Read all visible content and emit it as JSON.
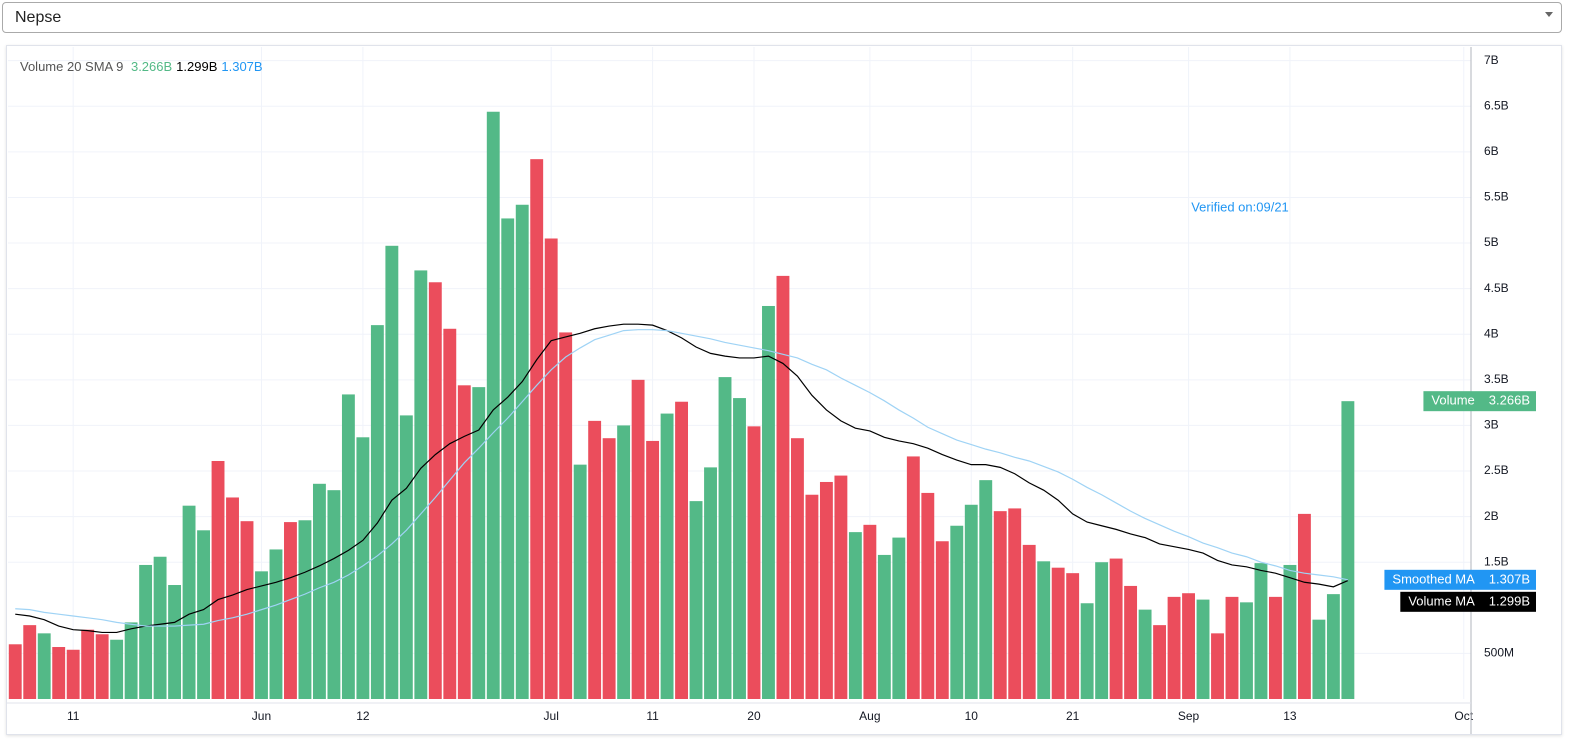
{
  "dropdown": {
    "value": "Nepse"
  },
  "chart_data": {
    "type": "bar",
    "legend_title": "Volume 20 SMA 9",
    "annotation": "Verified on:09/21",
    "annotation_color": "#2196f3",
    "grid": true,
    "ylim": [
      0,
      7.15
    ],
    "yticks": [
      {
        "value": 0.5,
        "label": "500M"
      },
      {
        "value": 1.5,
        "label": "1.5B"
      },
      {
        "value": 2,
        "label": "2B"
      },
      {
        "value": 2.5,
        "label": "2.5B"
      },
      {
        "value": 3,
        "label": "3B"
      },
      {
        "value": 3.5,
        "label": "3.5B"
      },
      {
        "value": 4,
        "label": "4B"
      },
      {
        "value": 4.5,
        "label": "4.5B"
      },
      {
        "value": 5,
        "label": "5B"
      },
      {
        "value": 5.5,
        "label": "5.5B"
      },
      {
        "value": 6,
        "label": "6B"
      },
      {
        "value": 6.5,
        "label": "6.5B"
      },
      {
        "value": 7,
        "label": "7B"
      }
    ],
    "categories": [
      null,
      null,
      null,
      null,
      "11",
      null,
      null,
      null,
      null,
      null,
      null,
      null,
      null,
      null,
      null,
      null,
      null,
      "Jun",
      null,
      null,
      null,
      null,
      null,
      null,
      "12",
      null,
      null,
      null,
      null,
      null,
      null,
      null,
      null,
      null,
      null,
      null,
      null,
      "Jul",
      null,
      null,
      null,
      null,
      null,
      null,
      "11",
      null,
      null,
      null,
      null,
      null,
      null,
      "20",
      null,
      null,
      null,
      null,
      null,
      null,
      null,
      "Aug",
      null,
      null,
      null,
      null,
      null,
      null,
      "10",
      null,
      null,
      null,
      null,
      null,
      null,
      "21",
      null,
      null,
      null,
      null,
      null,
      null,
      null,
      "Sep",
      null,
      null,
      null,
      null,
      null,
      null,
      "13",
      null,
      null,
      null,
      null,
      null,
      null,
      null,
      null,
      null,
      null,
      null,
      "Oct"
    ],
    "series": [
      {
        "name": "Volume",
        "type": "bar",
        "last_label": "3.266B",
        "label_color": "#53b987",
        "tag_color": "#53b987",
        "values": [
          0.6,
          0.81,
          0.72,
          0.57,
          0.54,
          0.76,
          0.71,
          0.65,
          0.84,
          1.47,
          1.56,
          1.25,
          2.12,
          1.85,
          2.61,
          2.21,
          1.95,
          1.4,
          1.64,
          1.94,
          1.96,
          2.36,
          2.29,
          3.34,
          2.87,
          4.1,
          4.97,
          3.11,
          4.7,
          4.57,
          4.06,
          3.44,
          3.42,
          6.44,
          5.27,
          5.42,
          5.92,
          5.05,
          4.02,
          2.57,
          3.05,
          2.86,
          3.0,
          3.5,
          2.83,
          3.13,
          3.26,
          2.17,
          2.54,
          3.53,
          3.3,
          2.99,
          4.31,
          4.64,
          2.86,
          2.24,
          2.38,
          2.45,
          1.83,
          1.91,
          1.58,
          1.77,
          2.66,
          2.26,
          1.73,
          1.9,
          2.13,
          2.4,
          2.06,
          2.09,
          1.69,
          1.51,
          1.44,
          1.38,
          1.05,
          1.5,
          1.54,
          1.24,
          0.98,
          0.81,
          1.12,
          1.16,
          1.09,
          0.72,
          1.12,
          1.06,
          1.49,
          1.12,
          1.47,
          2.03,
          0.87,
          1.15,
          3.266,
          null,
          null,
          null,
          null,
          null,
          null,
          null,
          null
        ],
        "colors": [
          "#eb4d5c",
          "#eb4d5c",
          "#53b987",
          "#eb4d5c",
          "#eb4d5c",
          "#eb4d5c",
          "#eb4d5c",
          "#53b987",
          "#53b987",
          "#53b987",
          "#53b987",
          "#53b987",
          "#53b987",
          "#53b987",
          "#eb4d5c",
          "#eb4d5c",
          "#eb4d5c",
          "#53b987",
          "#53b987",
          "#eb4d5c",
          "#53b987",
          "#53b987",
          "#53b987",
          "#53b987",
          "#53b987",
          "#53b987",
          "#53b987",
          "#53b987",
          "#53b987",
          "#eb4d5c",
          "#eb4d5c",
          "#eb4d5c",
          "#53b987",
          "#53b987",
          "#53b987",
          "#53b987",
          "#eb4d5c",
          "#eb4d5c",
          "#eb4d5c",
          "#53b987",
          "#eb4d5c",
          "#eb4d5c",
          "#53b987",
          "#eb4d5c",
          "#eb4d5c",
          "#53b987",
          "#eb4d5c",
          "#53b987",
          "#53b987",
          "#53b987",
          "#53b987",
          "#eb4d5c",
          "#53b987",
          "#eb4d5c",
          "#eb4d5c",
          "#eb4d5c",
          "#eb4d5c",
          "#eb4d5c",
          "#53b987",
          "#eb4d5c",
          "#53b987",
          "#53b987",
          "#eb4d5c",
          "#eb4d5c",
          "#eb4d5c",
          "#53b987",
          "#53b987",
          "#53b987",
          "#eb4d5c",
          "#eb4d5c",
          "#eb4d5c",
          "#53b987",
          "#eb4d5c",
          "#eb4d5c",
          "#53b987",
          "#53b987",
          "#eb4d5c",
          "#eb4d5c",
          "#53b987",
          "#eb4d5c",
          "#eb4d5c",
          "#eb4d5c",
          "#53b987",
          "#eb4d5c",
          "#eb4d5c",
          "#53b987",
          "#53b987",
          "#eb4d5c",
          "#53b987",
          "#eb4d5c",
          "#53b987",
          "#53b987",
          "#53b987",
          null,
          null,
          null,
          null,
          null,
          null,
          null,
          null
        ]
      },
      {
        "name": "Volume MA",
        "type": "line",
        "color": "#000000",
        "last_label": "1.299B",
        "label_color": "#000000",
        "tag_color": "#000000",
        "values": [
          0.93,
          0.91,
          0.87,
          0.8,
          0.76,
          0.75,
          0.73,
          0.73,
          0.77,
          0.8,
          0.82,
          0.84,
          0.93,
          0.98,
          1.09,
          1.14,
          1.2,
          1.24,
          1.28,
          1.33,
          1.39,
          1.46,
          1.54,
          1.63,
          1.74,
          1.93,
          2.18,
          2.31,
          2.53,
          2.68,
          2.8,
          2.88,
          2.95,
          3.17,
          3.31,
          3.48,
          3.72,
          3.93,
          3.97,
          4.01,
          4.06,
          4.09,
          4.11,
          4.11,
          4.1,
          4.04,
          3.96,
          3.86,
          3.79,
          3.76,
          3.74,
          3.74,
          3.76,
          3.68,
          3.54,
          3.33,
          3.17,
          3.05,
          2.97,
          2.94,
          2.87,
          2.83,
          2.8,
          2.75,
          2.68,
          2.62,
          2.57,
          2.57,
          2.54,
          2.47,
          2.37,
          2.29,
          2.18,
          2.03,
          1.94,
          1.9,
          1.86,
          1.81,
          1.77,
          1.7,
          1.67,
          1.64,
          1.6,
          1.52,
          1.47,
          1.45,
          1.41,
          1.38,
          1.33,
          1.28,
          1.26,
          1.23,
          1.299,
          null,
          null,
          null,
          null,
          null,
          null,
          null,
          null
        ]
      },
      {
        "name": "Smoothed MA",
        "type": "line",
        "color": "#9fd3f5",
        "last_label": "1.307B",
        "label_color": "#2196f3",
        "tag_color": "#2196f3",
        "values": [
          0.99,
          0.98,
          0.95,
          0.93,
          0.91,
          0.89,
          0.87,
          0.84,
          0.82,
          0.8,
          0.8,
          0.8,
          0.81,
          0.82,
          0.86,
          0.89,
          0.93,
          0.98,
          1.03,
          1.09,
          1.15,
          1.22,
          1.28,
          1.36,
          1.46,
          1.57,
          1.7,
          1.85,
          2.03,
          2.21,
          2.4,
          2.59,
          2.75,
          2.92,
          3.08,
          3.26,
          3.44,
          3.61,
          3.75,
          3.85,
          3.94,
          3.99,
          4.04,
          4.05,
          4.05,
          4.04,
          4.01,
          3.98,
          3.95,
          3.91,
          3.88,
          3.85,
          3.82,
          3.78,
          3.74,
          3.67,
          3.61,
          3.52,
          3.44,
          3.36,
          3.27,
          3.17,
          3.08,
          2.98,
          2.91,
          2.84,
          2.79,
          2.74,
          2.7,
          2.65,
          2.61,
          2.55,
          2.49,
          2.41,
          2.32,
          2.24,
          2.15,
          2.06,
          1.98,
          1.91,
          1.84,
          1.78,
          1.71,
          1.66,
          1.6,
          1.56,
          1.5,
          1.46,
          1.41,
          1.38,
          1.36,
          1.34,
          1.307,
          null,
          null,
          null,
          null,
          null,
          null,
          null,
          null
        ]
      }
    ]
  }
}
